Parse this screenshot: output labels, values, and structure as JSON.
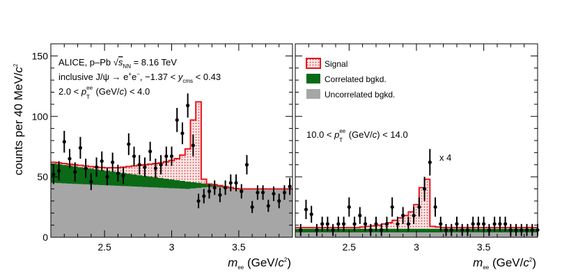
{
  "chart_data": {
    "type": "histogram",
    "ylabel": "counts per 40 MeV/c²",
    "ylabel_prefix": "counts per 40 MeV/",
    "ylabel_c": "c",
    "ylabel_exp": "2",
    "ylim": [
      0,
      160
    ],
    "xlim": [
      2.1,
      3.9
    ],
    "yticks": [
      0,
      50,
      100,
      150
    ],
    "xticks": [
      2.5,
      3,
      3.5
    ],
    "xtick_labels": [
      "2.5",
      "3",
      "3.5"
    ],
    "ytick_labels": [
      "0",
      "50",
      "100",
      "150"
    ],
    "panels": [
      {
        "name": "left",
        "xlabel": {
          "m": "m",
          "sub": "ee",
          "unit": " (GeV/",
          "c": "c",
          "exp": "2",
          "close": ")"
        },
        "annotations": {
          "line1_a": "ALICE, p–Pb ",
          "line1_s": "s",
          "line1_sub": "NN",
          "line1_b": " = 8.16 TeV",
          "line2_a": "inclusive J/ψ → e",
          "line2_sup1": "+",
          "line2_b": "e",
          "line2_sup2": "−",
          "line2_c": ", −1.37 < ",
          "line2_y": "y",
          "line2_sub": "cms",
          "line2_d": " < 0.43",
          "line3_a": "2.0 < ",
          "line3_p": "p",
          "line3_sup": "ee",
          "line3_sub": "T",
          "line3_b": " (GeV/",
          "line3_c": "c",
          "line3_d": ") < 4.0"
        },
        "edges": [
          2.1,
          3.9
        ],
        "uncorrelated": [
          45,
          44.8,
          44.6,
          44.4,
          44.2,
          44.0,
          43.8,
          43.6,
          43.4,
          43.2,
          43.0,
          42.8,
          42.6,
          42.4,
          42.2,
          42.0,
          41.8,
          41.6,
          41.4,
          41.2,
          41.0,
          40.8,
          40.6,
          40.4,
          40.2,
          40.0,
          40.4,
          40.8,
          41.2,
          41.6,
          42.0,
          41.5,
          41.0,
          40.5,
          40.0,
          40.0,
          40.0,
          40.0,
          40.0,
          40.0,
          40.0,
          40.0,
          40.0,
          40.0,
          40.0
        ],
        "correlated_top": [
          61,
          60.4,
          59.8,
          59.2,
          58.6,
          58.0,
          57.4,
          56.8,
          56.2,
          55.6,
          55.0,
          54.4,
          53.8,
          53.2,
          52.6,
          52.0,
          51.4,
          50.8,
          50.2,
          49.6,
          49.0,
          48.4,
          47.8,
          47.2,
          46.6,
          46.0,
          45.5,
          45.0,
          44.5,
          44.0,
          43.5,
          42.7,
          41.9,
          41.1,
          40.3,
          40.0,
          40.0,
          40.0,
          40.0,
          40.0,
          40.0,
          40.0,
          40.0,
          40.0,
          40.0
        ],
        "signal_top": [
          62,
          61.5,
          61,
          60.5,
          60,
          59.5,
          59,
          58.5,
          58,
          57.7,
          57.5,
          57.5,
          57.5,
          58,
          58.5,
          59,
          59.5,
          60,
          60.5,
          61,
          61.5,
          62.5,
          63.5,
          65,
          68,
          73,
          97,
          112,
          48,
          44,
          43.5,
          42.7,
          41.9,
          41.1,
          40.3,
          40.0,
          40.0,
          40.0,
          40.0,
          40.0,
          40.0,
          40.0,
          40.0,
          40.0,
          40.0
        ],
        "points": [
          {
            "x": 2.12,
            "y": 52,
            "err": 8
          },
          {
            "x": 2.16,
            "y": 55,
            "err": 8
          },
          {
            "x": 2.2,
            "y": 79,
            "err": 9
          },
          {
            "x": 2.24,
            "y": 65,
            "err": 8
          },
          {
            "x": 2.28,
            "y": 54,
            "err": 8
          },
          {
            "x": 2.32,
            "y": 74,
            "err": 9
          },
          {
            "x": 2.36,
            "y": 57,
            "err": 8
          },
          {
            "x": 2.4,
            "y": 46,
            "err": 7
          },
          {
            "x": 2.44,
            "y": 58,
            "err": 8
          },
          {
            "x": 2.48,
            "y": 63,
            "err": 8
          },
          {
            "x": 2.52,
            "y": 50,
            "err": 7
          },
          {
            "x": 2.56,
            "y": 62,
            "err": 8
          },
          {
            "x": 2.6,
            "y": 53,
            "err": 7
          },
          {
            "x": 2.64,
            "y": 51,
            "err": 7
          },
          {
            "x": 2.68,
            "y": 77,
            "err": 9
          },
          {
            "x": 2.72,
            "y": 67,
            "err": 8
          },
          {
            "x": 2.76,
            "y": 60,
            "err": 8
          },
          {
            "x": 2.8,
            "y": 58,
            "err": 8
          },
          {
            "x": 2.84,
            "y": 71,
            "err": 8
          },
          {
            "x": 2.88,
            "y": 57,
            "err": 8
          },
          {
            "x": 2.92,
            "y": 60,
            "err": 8
          },
          {
            "x": 2.96,
            "y": 67,
            "err": 8
          },
          {
            "x": 3.0,
            "y": 67,
            "err": 8
          },
          {
            "x": 3.04,
            "y": 97,
            "err": 10
          },
          {
            "x": 3.08,
            "y": 86,
            "err": 9
          },
          {
            "x": 3.12,
            "y": 109,
            "err": 10
          },
          {
            "x": 3.16,
            "y": 76,
            "err": 9
          },
          {
            "x": 3.2,
            "y": 30,
            "err": 6
          },
          {
            "x": 3.24,
            "y": 34,
            "err": 6
          },
          {
            "x": 3.28,
            "y": 38,
            "err": 6
          },
          {
            "x": 3.32,
            "y": 41,
            "err": 6
          },
          {
            "x": 3.36,
            "y": 35,
            "err": 6
          },
          {
            "x": 3.4,
            "y": 41,
            "err": 6
          },
          {
            "x": 3.44,
            "y": 45,
            "err": 7
          },
          {
            "x": 3.48,
            "y": 45,
            "err": 7
          },
          {
            "x": 3.52,
            "y": 38,
            "err": 6
          },
          {
            "x": 3.56,
            "y": 60,
            "err": 8
          },
          {
            "x": 3.6,
            "y": 25,
            "err": 5
          },
          {
            "x": 3.64,
            "y": 37,
            "err": 6
          },
          {
            "x": 3.68,
            "y": 37,
            "err": 6
          },
          {
            "x": 3.72,
            "y": 26,
            "err": 5
          },
          {
            "x": 3.76,
            "y": 36,
            "err": 6
          },
          {
            "x": 3.8,
            "y": 30,
            "err": 6
          },
          {
            "x": 3.84,
            "y": 37,
            "err": 6
          },
          {
            "x": 3.88,
            "y": 42,
            "err": 7
          }
        ]
      },
      {
        "name": "right",
        "xlabel": {
          "m": "m",
          "sub": "ee",
          "unit": " (GeV/",
          "c": "c",
          "exp": "2",
          "close": ")"
        },
        "legend": [
          "Signal",
          "Correlated bgkd.",
          "Uncorrelated bgkd."
        ],
        "annotations": {
          "pt_a": "10.0 < ",
          "pt_p": "p",
          "pt_sup": "ee",
          "pt_sub": "T",
          "pt_b": "  (GeV/",
          "pt_c": "c",
          "pt_d": ") < 14.0",
          "scale": "x 4"
        },
        "uncorrelated": [
          4,
          4,
          4,
          4,
          4,
          4,
          4,
          4,
          4,
          4,
          4,
          4,
          4,
          4,
          4,
          4,
          4,
          4,
          4,
          4,
          4,
          4,
          4,
          4,
          4,
          4,
          4,
          4,
          4,
          4,
          4,
          4,
          4,
          4,
          4,
          4,
          4,
          4,
          4,
          4,
          4,
          4,
          4,
          4,
          4
        ],
        "correlated_top": [
          7,
          7,
          7,
          7,
          7,
          7,
          7,
          7,
          7,
          7,
          7,
          7,
          7,
          7,
          7,
          7,
          7,
          7,
          7,
          7,
          7,
          7,
          7,
          7,
          7,
          7,
          7,
          7,
          7,
          7,
          7,
          7,
          7,
          7,
          7,
          7,
          7,
          7,
          7,
          7,
          7,
          7,
          7,
          7,
          7
        ],
        "signal_top": [
          8,
          8,
          8,
          8,
          8,
          8,
          8,
          8,
          8,
          8,
          8,
          8,
          8.5,
          9,
          9.5,
          10,
          11,
          12,
          14,
          16,
          18,
          21,
          27,
          41,
          48,
          9,
          8.5,
          8,
          8,
          8,
          8,
          8,
          8,
          8,
          8,
          8,
          8,
          8,
          8,
          8,
          8,
          8,
          8,
          8,
          8
        ],
        "points": [
          {
            "x": 2.14,
            "y": 6,
            "err": 5
          },
          {
            "x": 2.18,
            "y": 23,
            "err": 8
          },
          {
            "x": 2.22,
            "y": 19,
            "err": 7
          },
          {
            "x": 2.26,
            "y": 6,
            "err": 5
          },
          {
            "x": 2.3,
            "y": 11,
            "err": 6
          },
          {
            "x": 2.34,
            "y": 11,
            "err": 6
          },
          {
            "x": 2.38,
            "y": 6,
            "err": 5
          },
          {
            "x": 2.42,
            "y": 11,
            "err": 6
          },
          {
            "x": 2.46,
            "y": 11,
            "err": 6
          },
          {
            "x": 2.5,
            "y": 25,
            "err": 8
          },
          {
            "x": 2.54,
            "y": 11,
            "err": 6
          },
          {
            "x": 2.58,
            "y": 18,
            "err": 7
          },
          {
            "x": 2.62,
            "y": 11,
            "err": 6
          },
          {
            "x": 2.66,
            "y": 6,
            "err": 5
          },
          {
            "x": 2.7,
            "y": 11,
            "err": 6
          },
          {
            "x": 2.74,
            "y": 6,
            "err": 5
          },
          {
            "x": 2.78,
            "y": 11,
            "err": 6
          },
          {
            "x": 2.82,
            "y": 25,
            "err": 8
          },
          {
            "x": 2.86,
            "y": 11,
            "err": 6
          },
          {
            "x": 2.9,
            "y": 18,
            "err": 7
          },
          {
            "x": 2.94,
            "y": 11,
            "err": 6
          },
          {
            "x": 2.98,
            "y": 18,
            "err": 7
          },
          {
            "x": 3.02,
            "y": 25,
            "err": 8
          },
          {
            "x": 3.06,
            "y": 40,
            "err": 10
          },
          {
            "x": 3.1,
            "y": 62,
            "err": 11
          },
          {
            "x": 3.14,
            "y": 25,
            "err": 8
          },
          {
            "x": 3.18,
            "y": 11,
            "err": 6
          },
          {
            "x": 3.22,
            "y": 6,
            "err": 5
          },
          {
            "x": 3.26,
            "y": 6,
            "err": 5
          },
          {
            "x": 3.3,
            "y": 11,
            "err": 6
          },
          {
            "x": 3.34,
            "y": 6,
            "err": 5
          },
          {
            "x": 3.38,
            "y": 6,
            "err": 5
          },
          {
            "x": 3.42,
            "y": 11,
            "err": 6
          },
          {
            "x": 3.46,
            "y": 11,
            "err": 6
          },
          {
            "x": 3.5,
            "y": 11,
            "err": 6
          },
          {
            "x": 3.54,
            "y": 6,
            "err": 5
          },
          {
            "x": 3.58,
            "y": 11,
            "err": 6
          },
          {
            "x": 3.62,
            "y": 11,
            "err": 6
          },
          {
            "x": 3.66,
            "y": 11,
            "err": 6
          },
          {
            "x": 3.7,
            "y": 6,
            "err": 5
          },
          {
            "x": 3.74,
            "y": 6,
            "err": 5
          },
          {
            "x": 3.78,
            "y": 6,
            "err": 5
          },
          {
            "x": 3.82,
            "y": 6,
            "err": 5
          },
          {
            "x": 3.86,
            "y": 6,
            "err": 5
          },
          {
            "x": 3.9,
            "y": 6,
            "err": 5
          }
        ]
      }
    ],
    "colors": {
      "signal_line": "#e8141c",
      "signal_fill": "#fbe3e3",
      "signal_dot": "#d9141c",
      "correlated": "#0a6a16",
      "uncorrelated": "#a6a6a6",
      "points": "#000000"
    }
  }
}
